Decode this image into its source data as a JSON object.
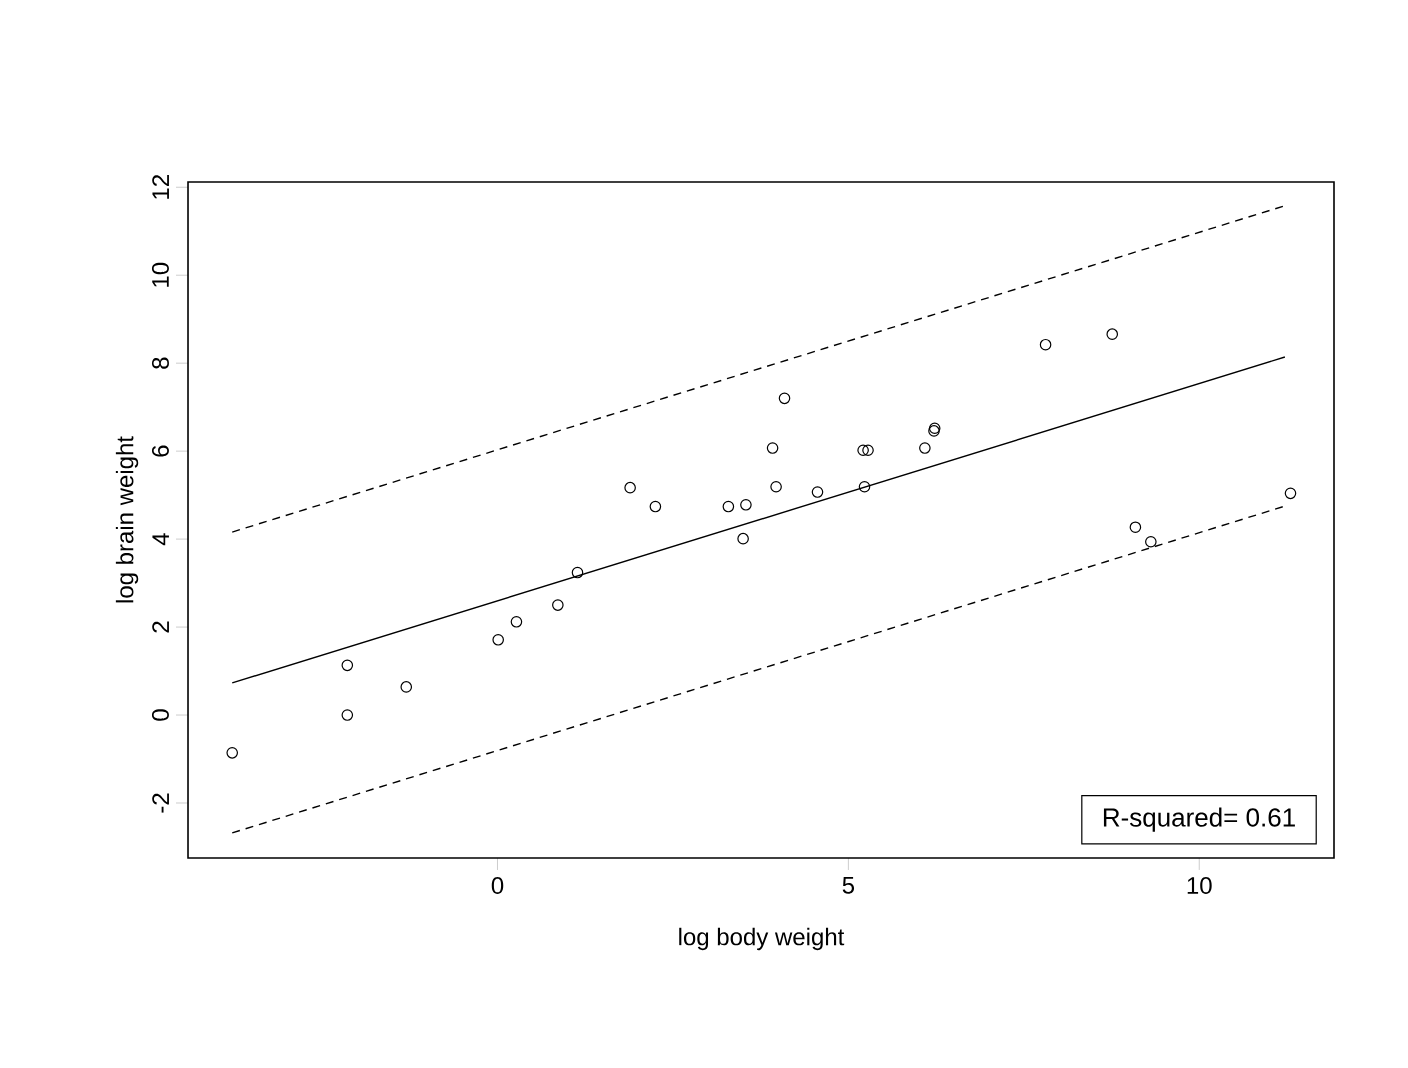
{
  "chart_data": {
    "type": "scatter",
    "xlabel": "log body weight",
    "ylabel": "log brain weight",
    "xlim": [
      -4.41,
      11.92
    ],
    "ylim": [
      -3.25,
      12.12
    ],
    "xticks": [
      0,
      5,
      10
    ],
    "yticks": [
      -2,
      0,
      2,
      4,
      6,
      8,
      10,
      12
    ],
    "grid": false,
    "series": [
      {
        "color": "#000000",
        "marker": "circle",
        "x": [
          -3.78,
          -2.14,
          -2.14,
          -1.3,
          0.01,
          0.27,
          0.86,
          1.14,
          1.89,
          2.25,
          3.29,
          3.54,
          3.5,
          3.92,
          3.97,
          4.09,
          4.56,
          5.21,
          5.28,
          5.23,
          6.09,
          6.22,
          6.23,
          7.81,
          8.76,
          9.09,
          9.31,
          11.3
        ],
        "values": [
          -0.86,
          1.13,
          0,
          0.64,
          1.71,
          2.12,
          2.5,
          3.24,
          5.17,
          4.74,
          4.74,
          4.78,
          4.01,
          6.07,
          5.19,
          7.2,
          5.07,
          6.02,
          6.02,
          5.19,
          6.07,
          6.46,
          6.52,
          8.42,
          8.66,
          4.27,
          3.94,
          5.04
        ]
      },
      {
        "type": "line",
        "color": "#000000",
        "line_style": "solid",
        "x": [
          -3.78,
          11.22
        ],
        "values": [
          0.73,
          8.14
        ]
      },
      {
        "type": "line",
        "color": "#000000",
        "line_style": "dashed",
        "x": [
          -3.78,
          11.22
        ],
        "values": [
          4.16,
          11.58
        ]
      },
      {
        "type": "line",
        "color": "#000000",
        "line_style": "dashed",
        "x": [
          -3.78,
          11.22
        ],
        "values": [
          -2.68,
          4.75
        ]
      }
    ],
    "annotations": [
      "R-squared= 0.61"
    ]
  }
}
